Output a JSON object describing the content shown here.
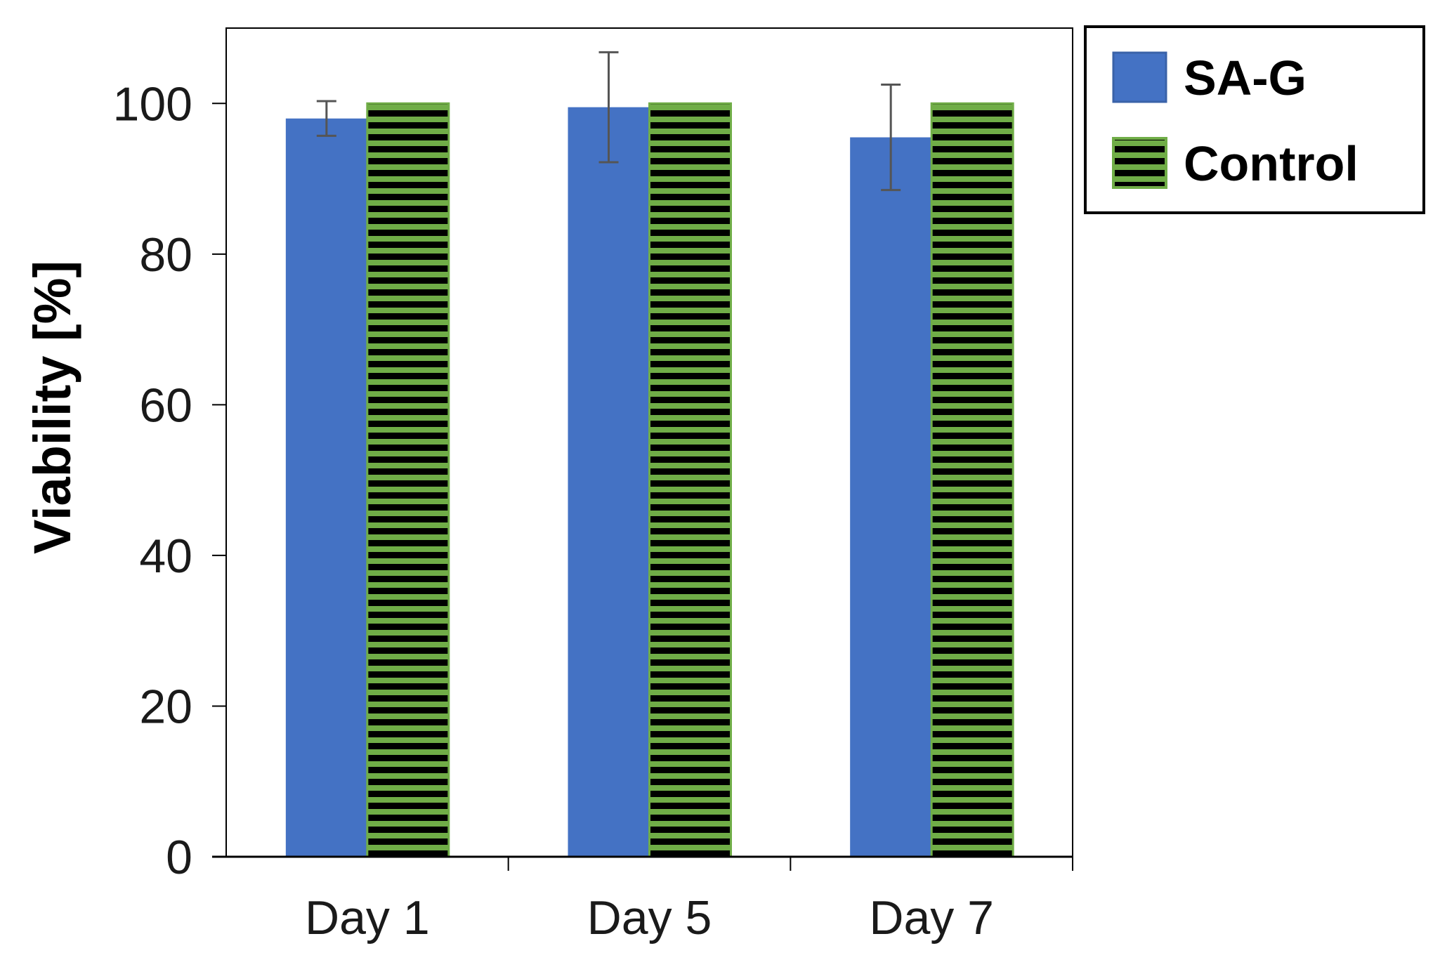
{
  "chart_data": {
    "type": "bar",
    "title": "",
    "xlabel": "",
    "ylabel": "Viability [%]",
    "ylim": [
      0,
      110
    ],
    "yticks": [
      0,
      20,
      40,
      60,
      80,
      100
    ],
    "categories": [
      "Day 1",
      "Day 5",
      "Day 7"
    ],
    "series": [
      {
        "name": "SA-G",
        "values": [
          98,
          99.5,
          95.5
        ],
        "error": [
          2.3,
          7.3,
          7
        ],
        "color": "#4472c4",
        "pattern": "solid"
      },
      {
        "name": "Control",
        "values": [
          100,
          100,
          100
        ],
        "color": "#70ad47",
        "pattern": "horizontal-black-stripes"
      }
    ],
    "grid": false,
    "legend": "top-right (outside)"
  }
}
